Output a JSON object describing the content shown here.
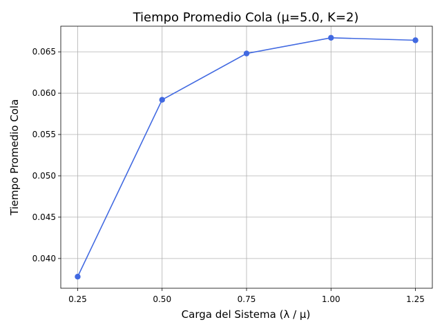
{
  "chart_data": {
    "type": "line",
    "title": "Tiempo Promedio Cola (μ=5.0, K=2)",
    "xlabel": "Carga del Sistema (λ / μ)",
    "ylabel": "Tiempo Promedio Cola",
    "x": [
      0.25,
      0.5,
      0.75,
      1.0,
      1.25
    ],
    "series": [
      {
        "values": [
          0.0378,
          0.0592,
          0.0648,
          0.0667,
          0.0664
        ]
      }
    ],
    "x_ticks": [
      "0.25",
      "0.50",
      "0.75",
      "1.00",
      "1.25"
    ],
    "y_ticks": [
      "0.040",
      "0.045",
      "0.050",
      "0.055",
      "0.060",
      "0.065"
    ],
    "xlim": [
      0.2,
      1.3
    ],
    "ylim": [
      0.0364,
      0.0681
    ],
    "grid": true,
    "line_color": "#4169e1"
  }
}
